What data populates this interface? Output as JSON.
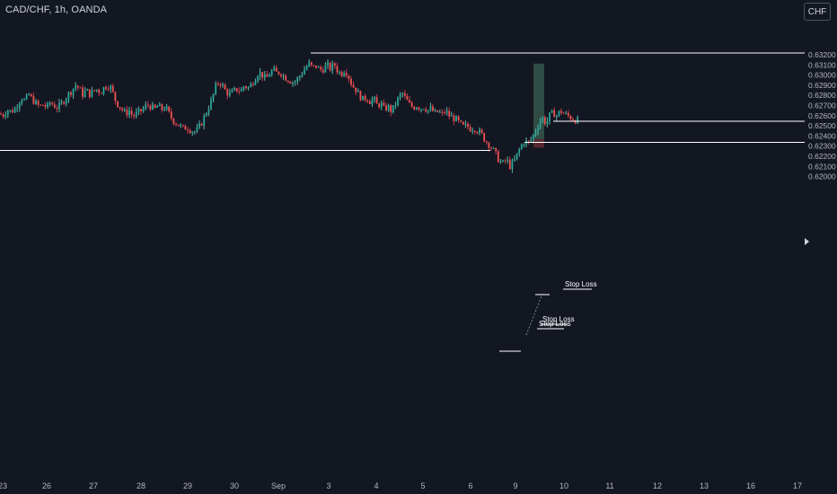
{
  "header": {
    "title": "CAD/CHF, 1h, OANDA",
    "currency": "CHF"
  },
  "chart_data": {
    "type": "candlestick",
    "title": "CAD/CHF, 1h, OANDA",
    "ylim": [
      0.6195,
      0.633
    ],
    "y_ticks": [
      "0.63200",
      "0.63100",
      "0.63000",
      "0.62900",
      "0.62800",
      "0.62700",
      "0.62600",
      "0.62500",
      "0.62400",
      "0.62300",
      "0.62200",
      "0.62100",
      "0.62000"
    ],
    "x_ticks": [
      "23",
      "26",
      "27",
      "28",
      "29",
      "30",
      "Sep",
      "3",
      "4",
      "5",
      "6",
      "9",
      "10",
      "11",
      "12",
      "13",
      "16",
      "17"
    ],
    "colors": {
      "up": "#26a69a",
      "down": "#ef5350",
      "wick_up": "#5fb8a4",
      "wick_down": "#c0394f",
      "hline": "#ffffff"
    },
    "horizontal_levels": [
      0.63218,
      0.62545,
      0.62337,
      0.62258
    ],
    "position": {
      "entry": 0.62369,
      "target": 0.63113,
      "stop": 0.62285
    },
    "annotations": [
      "Stop Loss",
      "Stop Loss",
      "Stop Loss"
    ],
    "price_path": [
      [
        0,
        0.6262
      ],
      [
        3,
        0.626
      ],
      [
        8,
        0.6266
      ],
      [
        12,
        0.6264
      ],
      [
        16,
        0.6266
      ],
      [
        20,
        0.6272
      ],
      [
        24,
        0.6278
      ],
      [
        28,
        0.6274
      ],
      [
        32,
        0.6281
      ],
      [
        36,
        0.6276
      ],
      [
        40,
        0.6272
      ],
      [
        44,
        0.6269
      ],
      [
        48,
        0.6271
      ],
      [
        52,
        0.6268
      ],
      [
        56,
        0.6273
      ],
      [
        60,
        0.627
      ],
      [
        64,
        0.6268
      ],
      [
        68,
        0.6271
      ],
      [
        72,
        0.6276
      ],
      [
        76,
        0.6281
      ],
      [
        80,
        0.6285
      ],
      [
        84,
        0.629
      ],
      [
        88,
        0.6287
      ],
      [
        92,
        0.6281
      ],
      [
        96,
        0.6285
      ],
      [
        100,
        0.6281
      ],
      [
        104,
        0.6284
      ],
      [
        108,
        0.6286
      ],
      [
        112,
        0.6283
      ],
      [
        116,
        0.6288
      ],
      [
        120,
        0.629
      ],
      [
        124,
        0.6287
      ],
      [
        128,
        0.6276
      ],
      [
        132,
        0.627
      ],
      [
        136,
        0.6266
      ],
      [
        140,
        0.6262
      ],
      [
        144,
        0.6265
      ],
      [
        148,
        0.6259
      ],
      [
        152,
        0.6262
      ],
      [
        156,
        0.6264
      ],
      [
        160,
        0.6267
      ],
      [
        164,
        0.6271
      ],
      [
        168,
        0.6269
      ],
      [
        172,
        0.6266
      ],
      [
        176,
        0.627
      ],
      [
        180,
        0.6266
      ],
      [
        184,
        0.6269
      ],
      [
        188,
        0.6262
      ],
      [
        192,
        0.6256
      ],
      [
        196,
        0.6253
      ],
      [
        200,
        0.625
      ],
      [
        204,
        0.6247
      ],
      [
        208,
        0.6249
      ],
      [
        212,
        0.6246
      ],
      [
        216,
        0.6244
      ],
      [
        220,
        0.6246
      ],
      [
        224,
        0.6252
      ],
      [
        228,
        0.626
      ],
      [
        232,
        0.6268
      ],
      [
        236,
        0.6276
      ],
      [
        240,
        0.6288
      ],
      [
        244,
        0.6294
      ],
      [
        248,
        0.6289
      ],
      [
        252,
        0.6283
      ],
      [
        256,
        0.6281
      ],
      [
        260,
        0.6284
      ],
      [
        264,
        0.6286
      ],
      [
        268,
        0.6284
      ],
      [
        272,
        0.629
      ],
      [
        276,
        0.6287
      ],
      [
        280,
        0.6291
      ],
      [
        284,
        0.6297
      ],
      [
        288,
        0.6303
      ],
      [
        292,
        0.63
      ],
      [
        296,
        0.6296
      ],
      [
        300,
        0.6301
      ],
      [
        304,
        0.6305
      ],
      [
        308,
        0.6302
      ],
      [
        312,
        0.6303
      ],
      [
        316,
        0.6299
      ],
      [
        320,
        0.6296
      ],
      [
        324,
        0.6294
      ],
      [
        328,
        0.6293
      ],
      [
        332,
        0.6297
      ],
      [
        336,
        0.6302
      ],
      [
        340,
        0.6307
      ],
      [
        344,
        0.6311
      ],
      [
        348,
        0.6307
      ],
      [
        352,
        0.6309
      ],
      [
        356,
        0.6305
      ],
      [
        360,
        0.6306
      ],
      [
        364,
        0.631
      ],
      [
        368,
        0.6306
      ],
      [
        372,
        0.6311
      ],
      [
        376,
        0.6304
      ],
      [
        380,
        0.6301
      ],
      [
        384,
        0.6306
      ],
      [
        388,
        0.6299
      ],
      [
        392,
        0.629
      ],
      [
        396,
        0.6286
      ],
      [
        400,
        0.628
      ],
      [
        404,
        0.6276
      ],
      [
        408,
        0.6278
      ],
      [
        412,
        0.6274
      ],
      [
        416,
        0.6277
      ],
      [
        420,
        0.627
      ],
      [
        424,
        0.6272
      ],
      [
        428,
        0.6266
      ],
      [
        432,
        0.6269
      ],
      [
        436,
        0.6264
      ],
      [
        440,
        0.6271
      ],
      [
        444,
        0.6278
      ],
      [
        448,
        0.6282
      ],
      [
        452,
        0.6276
      ],
      [
        456,
        0.6271
      ],
      [
        460,
        0.6268
      ],
      [
        464,
        0.627
      ],
      [
        468,
        0.6267
      ],
      [
        472,
        0.6269
      ],
      [
        476,
        0.6265
      ],
      [
        480,
        0.6267
      ],
      [
        484,
        0.6262
      ],
      [
        488,
        0.6264
      ],
      [
        492,
        0.6261
      ],
      [
        496,
        0.6265
      ],
      [
        500,
        0.626
      ],
      [
        504,
        0.6258
      ],
      [
        508,
        0.6256
      ],
      [
        512,
        0.6252
      ],
      [
        516,
        0.6249
      ],
      [
        520,
        0.625
      ],
      [
        524,
        0.6247
      ],
      [
        528,
        0.6248
      ],
      [
        532,
        0.6245
      ],
      [
        536,
        0.6242
      ],
      [
        540,
        0.6236
      ],
      [
        544,
        0.6232
      ],
      [
        548,
        0.6228
      ],
      [
        552,
        0.6222
      ],
      [
        556,
        0.6215
      ],
      [
        560,
        0.6213
      ],
      [
        564,
        0.6217
      ],
      [
        568,
        0.621
      ],
      [
        572,
        0.6214
      ],
      [
        576,
        0.6222
      ],
      [
        580,
        0.623
      ],
      [
        584,
        0.6235
      ],
      [
        588,
        0.6233
      ],
      [
        592,
        0.6237
      ],
      [
        596,
        0.6245
      ],
      [
        600,
        0.6253
      ],
      [
        604,
        0.6258
      ],
      [
        608,
        0.6252
      ],
      [
        612,
        0.626
      ],
      [
        616,
        0.6263
      ],
      [
        620,
        0.626
      ],
      [
        624,
        0.6265
      ],
      [
        628,
        0.6262
      ],
      [
        632,
        0.626
      ],
      [
        636,
        0.6258
      ],
      [
        640,
        0.6256
      ],
      [
        644,
        0.6255
      ]
    ],
    "grid": false
  }
}
